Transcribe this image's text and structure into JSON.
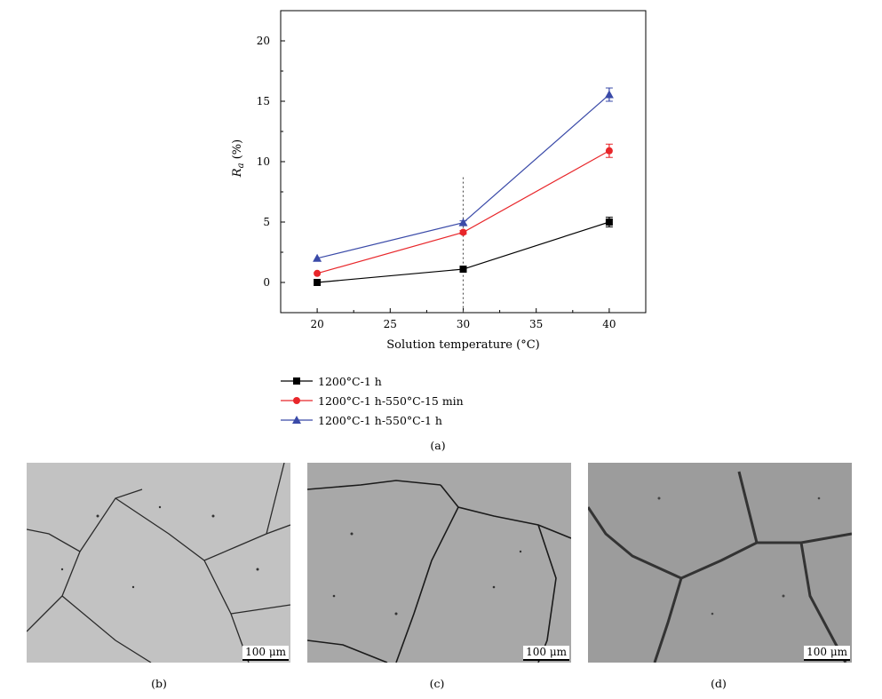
{
  "chart_data": {
    "type": "line",
    "title": "",
    "xlabel": "Solution temperature (°C)",
    "ylabel_main": "R",
    "ylabel_sub": "a",
    "ylabel_unit": "(%)",
    "xlim": [
      17.5,
      42.5
    ],
    "ylim": [
      -2.5,
      22.5
    ],
    "x_ticks": [
      20,
      25,
      30,
      35,
      40
    ],
    "y_ticks": [
      0,
      5,
      10,
      15,
      20
    ],
    "x": [
      20,
      30,
      40
    ],
    "reference_line_x": 30,
    "legend_position": "below",
    "series": [
      {
        "name": "1200°C-1 h",
        "values": [
          0.0,
          1.1,
          5.0
        ],
        "errors": [
          0.1,
          0.1,
          0.4
        ],
        "color": "#000000",
        "marker": "square"
      },
      {
        "name": "1200°C-1 h-550°C-15 min",
        "values": [
          0.75,
          4.15,
          10.9
        ],
        "errors": [
          0.1,
          0.15,
          0.55
        ],
        "color": "#e8262a",
        "marker": "circle"
      },
      {
        "name": "1200°C-1 h-550°C-1 h",
        "values": [
          2.0,
          4.95,
          15.55
        ],
        "errors": [
          0.1,
          0.15,
          0.55
        ],
        "color": "#3a4aa8",
        "marker": "triangle"
      }
    ]
  },
  "captions": {
    "a": "(a)",
    "b": "(b)",
    "c": "(c)",
    "d": "(d)"
  },
  "micrographs": [
    {
      "scale_label": "100 μm",
      "tone": "#bdbdbd"
    },
    {
      "scale_label": "100 μm",
      "tone": "#a9a9a9"
    },
    {
      "scale_label": "100 μm",
      "tone": "#9a9a9a"
    }
  ]
}
